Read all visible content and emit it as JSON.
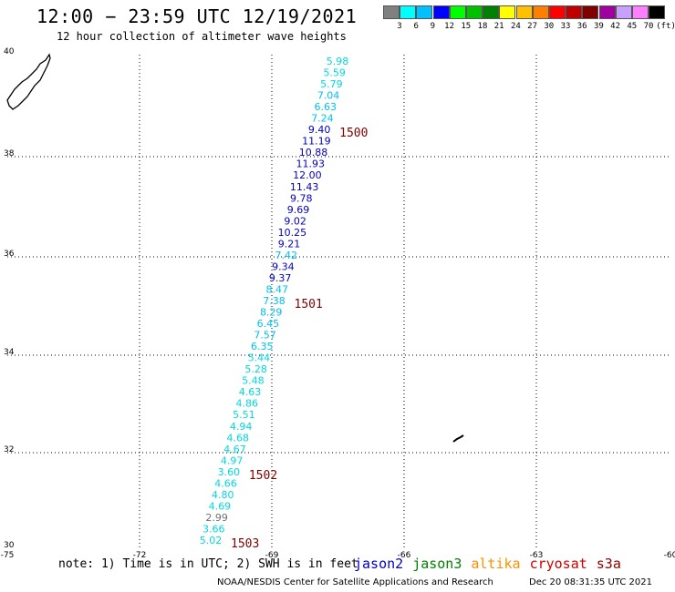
{
  "header": {
    "title": "12:00 − 23:59 UTC 12/19/2021",
    "subtitle": "12 hour collection of altimeter wave heights"
  },
  "scale": {
    "colors": [
      "#808080",
      "#00ffff",
      "#00c0ff",
      "#0000ff",
      "#00ff00",
      "#00c000",
      "#008000",
      "#ffff00",
      "#ffc000",
      "#ff8000",
      "#ff0000",
      "#c00000",
      "#800000",
      "#a000a0",
      "#c8a0ff",
      "#ff80ff",
      "#000000"
    ],
    "labels": [
      "3",
      "6",
      "9",
      "12",
      "15",
      "18",
      "21",
      "24",
      "27",
      "30",
      "33",
      "36",
      "39",
      "42",
      "45",
      "70"
    ],
    "unit": "(ft)"
  },
  "axes": {
    "lon_labels": [
      "-75",
      "-72",
      "-69",
      "-66",
      "-63",
      "-60"
    ],
    "lat_labels": [
      "40",
      "38",
      "36",
      "34",
      "32",
      "30"
    ]
  },
  "track": {
    "readings": [
      {
        "value": "5.98",
        "color": "#00d8e0"
      },
      {
        "value": "5.59",
        "color": "#00d8e0"
      },
      {
        "value": "5.79",
        "color": "#00d8e0"
      },
      {
        "value": "7.04",
        "color": "#00c0f0"
      },
      {
        "value": "6.63",
        "color": "#00c0f0"
      },
      {
        "value": "7.24",
        "color": "#00c0f0"
      },
      {
        "value": "9.40",
        "color": "#0000c0"
      },
      {
        "value": "11.19",
        "color": "#0000c0"
      },
      {
        "value": "10.88",
        "color": "#0000c0"
      },
      {
        "value": "11.93",
        "color": "#0000c0"
      },
      {
        "value": "12.00",
        "color": "#0000c0"
      },
      {
        "value": "11.43",
        "color": "#0000c0"
      },
      {
        "value": "9.78",
        "color": "#0000c0"
      },
      {
        "value": "9.69",
        "color": "#0000c0"
      },
      {
        "value": "9.02",
        "color": "#0000c0"
      },
      {
        "value": "10.25",
        "color": "#0000c0"
      },
      {
        "value": "9.21",
        "color": "#0000c0"
      },
      {
        "value": "7.42",
        "color": "#00c0f0"
      },
      {
        "value": "9.34",
        "color": "#0000c0"
      },
      {
        "value": "9.37",
        "color": "#0000c0"
      },
      {
        "value": "8.47",
        "color": "#00c0f0"
      },
      {
        "value": "7.38",
        "color": "#00c0f0"
      },
      {
        "value": "8.29",
        "color": "#00c0f0"
      },
      {
        "value": "6.45",
        "color": "#00c0f0"
      },
      {
        "value": "7.57",
        "color": "#00c0f0"
      },
      {
        "value": "6.35",
        "color": "#00c0f0"
      },
      {
        "value": "5.44",
        "color": "#00d8e0"
      },
      {
        "value": "5.28",
        "color": "#00d8e0"
      },
      {
        "value": "5.48",
        "color": "#00d8e0"
      },
      {
        "value": "4.63",
        "color": "#00d8e0"
      },
      {
        "value": "4.86",
        "color": "#00d8e0"
      },
      {
        "value": "5.51",
        "color": "#00d8e0"
      },
      {
        "value": "4.94",
        "color": "#00d8e0"
      },
      {
        "value": "4.68",
        "color": "#00d8e0"
      },
      {
        "value": "4.67",
        "color": "#00d8e0"
      },
      {
        "value": "4.97",
        "color": "#00d8e0"
      },
      {
        "value": "3.60",
        "color": "#00d8e0"
      },
      {
        "value": "4.66",
        "color": "#00d8e0"
      },
      {
        "value": "4.80",
        "color": "#00d8e0"
      },
      {
        "value": "4.69",
        "color": "#00d8e0"
      },
      {
        "value": "2.99",
        "color": "#707070"
      },
      {
        "value": "3.66",
        "color": "#00d8e0"
      },
      {
        "value": "5.02",
        "color": "#00d8e0"
      }
    ],
    "times": [
      {
        "label": "1500",
        "at": 6
      },
      {
        "label": "1501",
        "at": 21
      },
      {
        "label": "1502",
        "at": 36
      },
      {
        "label": "1503",
        "at": 42
      }
    ]
  },
  "footer": {
    "note": "note: 1) Time is in UTC; 2) SWH is in feet",
    "legend": [
      {
        "name": "jason2",
        "color": "#0000d0"
      },
      {
        "name": "jason3",
        "color": "#008000"
      },
      {
        "name": "altika",
        "color": "#ff9000"
      },
      {
        "name": "cryosat",
        "color": "#d00000"
      },
      {
        "name": "s3a",
        "color": "#900000"
      }
    ],
    "credit": "NOAA/NESDIS Center for Satellite Applications and Research",
    "timestamp": "Dec 20 08:31:35 UTC 2021"
  }
}
